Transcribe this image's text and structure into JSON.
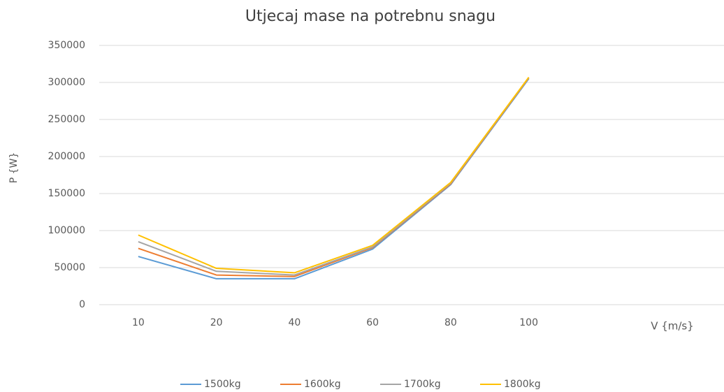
{
  "chart_data": {
    "type": "line",
    "title": "Utjecaj mase na potrebnu snagu",
    "x_label": "V {m/s}",
    "y_label": "P {W}",
    "categories": [
      "10",
      "20",
      "40",
      "60",
      "80",
      "100",
      null,
      null
    ],
    "series": [
      {
        "name": "1500kg",
        "color": "#5b9bd5",
        "values": [
          65000,
          35000,
          35000,
          75000,
          162000,
          305000,
          null,
          null
        ]
      },
      {
        "name": "1600kg",
        "color": "#ed7d31",
        "values": [
          76000,
          40000,
          38000,
          77000,
          163000,
          306000,
          null,
          null
        ]
      },
      {
        "name": "1700kg",
        "color": "#a5a5a5",
        "values": [
          85000,
          45000,
          40000,
          78000,
          164000,
          306500,
          null,
          null
        ]
      },
      {
        "name": "1800kg",
        "color": "#ffc000",
        "values": [
          94000,
          49000,
          43000,
          80000,
          165000,
          307000,
          null,
          null
        ]
      }
    ],
    "ylim": [
      0,
      350000
    ],
    "yticks": [
      0,
      50000,
      100000,
      150000,
      200000,
      250000,
      300000,
      350000
    ],
    "grid": true,
    "legend": "bottom"
  }
}
